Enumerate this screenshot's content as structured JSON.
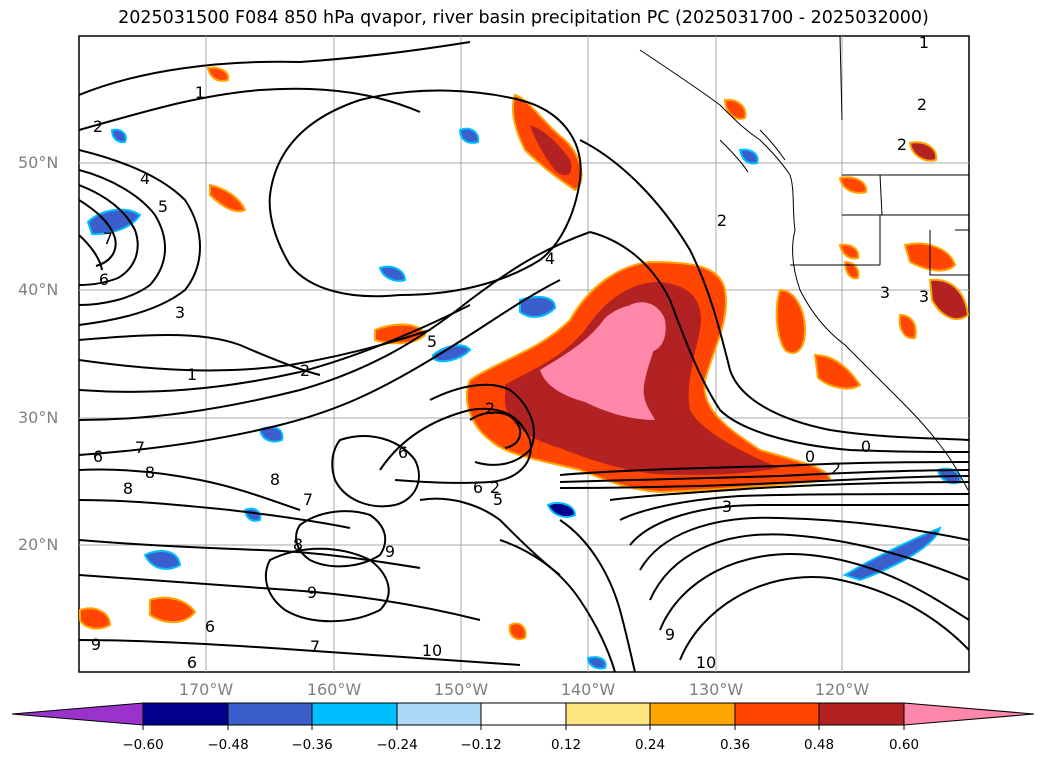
{
  "title": "2025031500 F084 850 hPa qvapor, river basin precipitation PC (2025031700 - 2025032000)",
  "map": {
    "lat_labels": [
      "50°N",
      "40°N",
      "30°N",
      "20°N"
    ],
    "lon_labels": [
      "170°W",
      "160°W",
      "150°W",
      "140°W",
      "130°W",
      "120°W"
    ],
    "contour_labels": [
      "1",
      "2",
      "4",
      "5",
      "7",
      "6",
      "3",
      "2",
      "1",
      "7",
      "8",
      "8",
      "6",
      "8",
      "7",
      "8",
      "9",
      "9",
      "6",
      "6",
      "9",
      "7",
      "10",
      "2",
      "4",
      "5",
      "6",
      "2",
      "6",
      "5",
      "3",
      "9",
      "10",
      "0",
      "2",
      "0",
      "2",
      "3",
      "2",
      "3",
      "2",
      "1"
    ]
  },
  "colorbar": {
    "tick_labels": [
      "−0.60",
      "−0.48",
      "−0.36",
      "−0.24",
      "−0.12",
      "0.12",
      "0.24",
      "0.36",
      "0.48",
      "0.60"
    ],
    "colors": [
      "#9933cc",
      "#00008b",
      "#3a5fcd",
      "#00bfff",
      "#add8f7",
      "#ffffff",
      "#ffe680",
      "#ffa500",
      "#ff4500",
      "#b22222",
      "#ff88aa",
      "#ff88aa"
    ]
  }
}
